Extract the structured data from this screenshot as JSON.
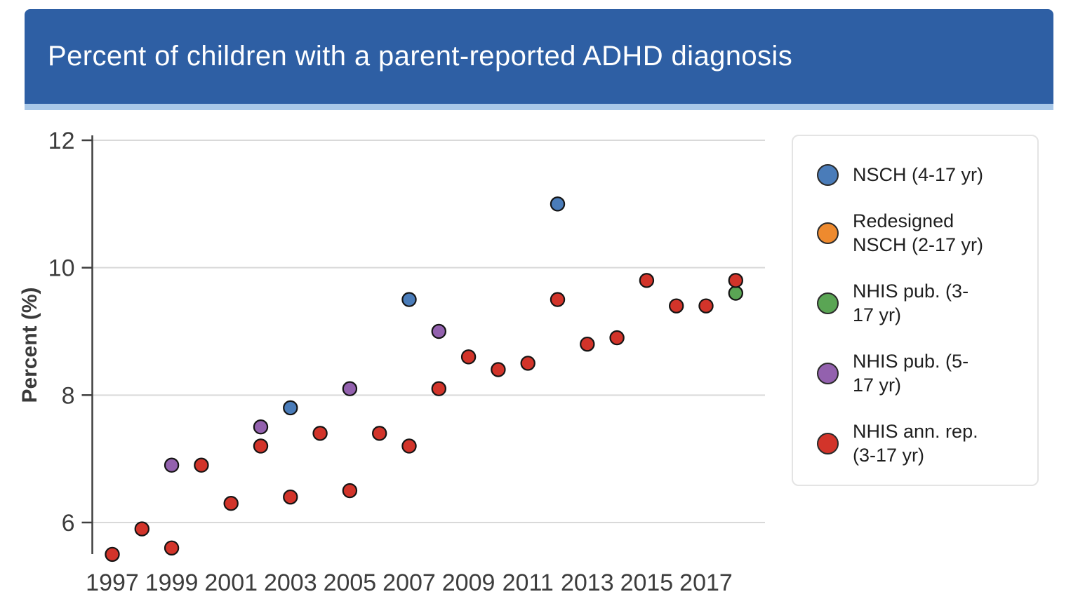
{
  "header": {
    "title": "Percent of children with a parent-reported ADHD diagnosis",
    "bar_color": "#2e5fa4",
    "accent_strip_color": "#a9c8e8"
  },
  "chart_data": {
    "type": "scatter",
    "title": "Percent of children with a parent-reported ADHD diagnosis",
    "xlabel": "",
    "ylabel": "Percent (%)",
    "x_ticks": [
      1997,
      1999,
      2001,
      2003,
      2005,
      2007,
      2009,
      2011,
      2013,
      2015,
      2017
    ],
    "y_ticks": [
      6,
      8,
      10,
      12
    ],
    "xlim": [
      1996.3,
      2019.0
    ],
    "ylim": [
      5.5,
      12.1
    ],
    "grid": "horizontal",
    "legend_position": "right",
    "series": [
      {
        "name": "NSCH (4-17 yr)",
        "color": "#4a7cb9",
        "points": [
          [
            2003,
            7.8
          ],
          [
            2007,
            9.5
          ],
          [
            2012,
            11.0
          ]
        ]
      },
      {
        "name": "Redesigned NSCH (2-17 yr)",
        "color": "#ee8a2e",
        "points": []
      },
      {
        "name": "NHIS pub. (3-17 yr)",
        "color": "#5aa554",
        "points": [
          [
            2018,
            9.6
          ]
        ]
      },
      {
        "name": "NHIS pub. (5-17 yr)",
        "color": "#9361ae",
        "points": [
          [
            1999,
            6.9
          ],
          [
            2002,
            7.5
          ],
          [
            2005,
            8.1
          ],
          [
            2008,
            9.0
          ]
        ]
      },
      {
        "name": "NHIS ann. rep. (3-17 yr)",
        "color": "#d2342a",
        "points": [
          [
            1997,
            5.5
          ],
          [
            1998,
            5.9
          ],
          [
            1999,
            5.6
          ],
          [
            2000,
            6.9
          ],
          [
            2001,
            6.3
          ],
          [
            2002,
            7.2
          ],
          [
            2003,
            6.4
          ],
          [
            2004,
            7.4
          ],
          [
            2005,
            6.5
          ],
          [
            2006,
            7.4
          ],
          [
            2007,
            7.2
          ],
          [
            2008,
            8.1
          ],
          [
            2009,
            8.6
          ],
          [
            2010,
            8.4
          ],
          [
            2011,
            8.5
          ],
          [
            2012,
            9.5
          ],
          [
            2013,
            8.8
          ],
          [
            2014,
            8.9
          ],
          [
            2015,
            9.8
          ],
          [
            2016,
            9.4
          ],
          [
            2017,
            9.4
          ],
          [
            2018,
            9.8
          ]
        ]
      }
    ]
  },
  "legend": {
    "entries": [
      {
        "label": "NSCH (4-17 yr)",
        "lines": [
          "NSCH (4-17 yr)"
        ],
        "color": "#4a7cb9"
      },
      {
        "label": "Redesigned NSCH (2-17 yr)",
        "lines": [
          "Redesigned",
          "NSCH (2-17 yr)"
        ],
        "color": "#ee8a2e"
      },
      {
        "label": "NHIS pub. (3-17 yr)",
        "lines": [
          "NHIS pub. (3-",
          "17 yr)"
        ],
        "color": "#5aa554"
      },
      {
        "label": "NHIS pub. (5-17 yr)",
        "lines": [
          "NHIS pub. (5-",
          "17 yr)"
        ],
        "color": "#9361ae"
      },
      {
        "label": "NHIS ann. rep. (3-17 yr)",
        "lines": [
          "NHIS ann. rep.",
          "(3-17 yr)"
        ],
        "color": "#d2342a"
      }
    ]
  }
}
